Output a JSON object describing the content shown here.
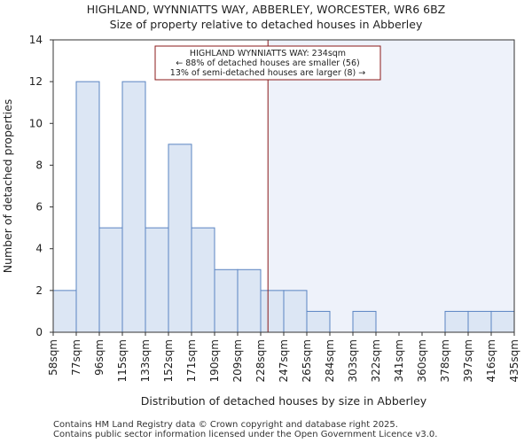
{
  "chart_data": {
    "type": "histogram",
    "title": "HIGHLAND, WYNNIATTS WAY, ABBERLEY, WORCESTER, WR6 6BZ",
    "subtitle": "Size of property relative to detached houses in Abberley",
    "xlabel": "Distribution of detached houses by size in Abberley",
    "ylabel": "Number of detached properties",
    "categories": [
      "58sqm",
      "77sqm",
      "96sqm",
      "115sqm",
      "133sqm",
      "152sqm",
      "171sqm",
      "190sqm",
      "209sqm",
      "228sqm",
      "247sqm",
      "265sqm",
      "284sqm",
      "303sqm",
      "322sqm",
      "341sqm",
      "360sqm",
      "378sqm",
      "397sqm",
      "416sqm",
      "435sqm"
    ],
    "values": [
      2,
      12,
      5,
      12,
      5,
      9,
      5,
      3,
      3,
      2,
      2,
      1,
      0,
      1,
      0,
      0,
      0,
      1,
      1,
      1
    ],
    "ylim": [
      0,
      14
    ],
    "yticks": [
      0,
      2,
      4,
      6,
      8,
      10,
      12,
      14
    ],
    "marker": {
      "value_sqm": 234,
      "line_color": "#8b1a1a",
      "label_lines": [
        "HIGHLAND WYNNIATTS WAY: 234sqm",
        "← 88% of detached houses are smaller (56)",
        "13% of semi-detached houses are larger (8) →"
      ]
    },
    "bar_fill": "#dce6f4",
    "bar_stroke": "#5a84c2",
    "highlight_fill": "#eef2fa"
  },
  "footer": {
    "line1": "Contains HM Land Registry data © Crown copyright and database right 2025.",
    "line2": "Contains public sector information licensed under the Open Government Licence v3.0."
  }
}
